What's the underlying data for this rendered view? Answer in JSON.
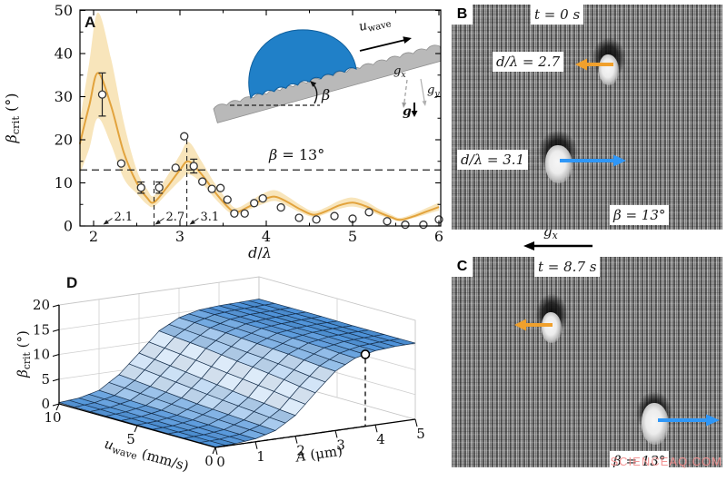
{
  "colors": {
    "curve": "#e2a33d",
    "band": "#f8e5bb",
    "accent_orange": "#f0a02c",
    "accent_blue": "#2f97f7",
    "surface_low": "#4a90d8",
    "surface_high": "#ddebf9",
    "mesh": "#16304e",
    "droplet_blue": "#2080c8",
    "droplet_edge": "#0f5e9c",
    "incline_gray": "#b9b9b9",
    "watermark_pink": "#f28c8c"
  },
  "panels": {
    "a": {
      "letter": "A",
      "ylabel_parts": [
        {
          "t": "β",
          "i": 1
        },
        {
          "t": "crit",
          "sub": 1
        },
        {
          "t": " (°)"
        }
      ],
      "xlabel_parts": [
        {
          "t": "d",
          "i": 1
        },
        {
          "t": "/"
        },
        {
          "t": "λ",
          "i": 1
        }
      ],
      "hline_label_parts": [
        {
          "t": "β",
          "i": 1
        },
        {
          "t": " = 13°"
        }
      ],
      "inset": {
        "uwave_parts": [
          {
            "t": "u",
            "i": 1
          },
          {
            "t": "wave",
            "sub": 1
          }
        ],
        "beta_parts": [
          {
            "t": "β",
            "i": 1
          }
        ],
        "gx_parts": [
          {
            "t": "g",
            "i": 1
          },
          {
            "t": "x",
            "i": 1,
            "sub": 1
          }
        ],
        "gy_parts": [
          {
            "t": "g",
            "i": 1
          },
          {
            "t": "y",
            "i": 1,
            "sub": 1
          }
        ],
        "g_parts": [
          {
            "t": "g",
            "i": 1,
            "b": 1
          }
        ]
      }
    },
    "b": {
      "letter": "B",
      "time": "t = 0 s",
      "droplet_label_1": "d/λ = 2.7",
      "droplet_label_2": "d/λ = 3.1",
      "beta": "β = 13°"
    },
    "between": {
      "gx_parts": [
        {
          "t": "g",
          "i": 1
        },
        {
          "t": "x",
          "i": 1,
          "sub": 1
        }
      ]
    },
    "c": {
      "letter": "C",
      "time": "t = 8.7 s",
      "beta": "β = 13°"
    },
    "d": {
      "letter": "D",
      "zlabel_parts": [
        {
          "t": "β",
          "i": 1
        },
        {
          "t": "crit",
          "sub": 1
        },
        {
          "t": " (°)"
        }
      ],
      "ulabel_parts": [
        {
          "t": "u",
          "i": 1
        },
        {
          "t": "wave",
          "sub": 1
        },
        {
          "t": " (mm/s)"
        }
      ],
      "alabel_parts": [
        {
          "t": "A",
          "i": 1
        },
        {
          "t": " (μm)"
        }
      ]
    },
    "watermark": "SCIENCEAQ.COM"
  },
  "chart_data": [
    {
      "type": "line",
      "panel": "A",
      "xlabel": "d/λ",
      "ylabel": "β_crit (°)",
      "xlim": [
        1.84,
        6.02
      ],
      "ylim": [
        0,
        50
      ],
      "xticks": [
        2,
        3,
        4,
        5,
        6
      ],
      "xminor": [
        2.5,
        3.5,
        4.5,
        5.5
      ],
      "yticks": [
        0,
        10,
        20,
        30,
        40,
        50
      ],
      "yminor": [
        5,
        15,
        25,
        35,
        45
      ],
      "hline": {
        "y": 13,
        "label": "β = 13°"
      },
      "vlines": [
        {
          "x": 2.7,
          "ymax": 11.2
        },
        {
          "x": 3.08,
          "ymax": 20.5
        }
      ],
      "annotations": [
        {
          "label": "2.1",
          "x": 2.1
        },
        {
          "label": "2.7",
          "x": 2.7
        },
        {
          "label": "3.1",
          "x": 3.1
        }
      ],
      "series": [
        {
          "name": "model with uncertainty band",
          "x": [
            1.84,
            1.95,
            2.05,
            2.2,
            2.35,
            2.5,
            2.62,
            2.7,
            2.85,
            3.0,
            3.1,
            3.25,
            3.4,
            3.55,
            3.65,
            3.8,
            3.95,
            4.1,
            4.25,
            4.4,
            4.55,
            4.7,
            4.85,
            5.0,
            5.15,
            5.3,
            5.45,
            5.55,
            5.7,
            5.85,
            6.0
          ],
          "y": [
            19,
            28,
            35.5,
            28,
            17,
            10,
            6.5,
            5.5,
            9,
            13,
            15,
            12,
            8,
            4.5,
            3.2,
            4.5,
            6,
            6.8,
            5.5,
            3.8,
            2.6,
            3.5,
            4.8,
            5.4,
            4.6,
            3.2,
            2.0,
            1.4,
            2.2,
            3.3,
            4.4
          ],
          "band_low": [
            12,
            18,
            25,
            19,
            11,
            7.5,
            5,
            4.5,
            7.5,
            10.5,
            12,
            10,
            6.5,
            3.5,
            2.6,
            3.8,
            5,
            5.8,
            4.6,
            3.1,
            2.1,
            2.9,
            4,
            4.5,
            3.8,
            2.6,
            1.6,
            1.1,
            1.8,
            2.7,
            3.6
          ],
          "band_high": [
            24,
            38,
            49.5,
            39,
            24,
            13,
            8.5,
            7,
            11.5,
            16.5,
            19.5,
            15,
            10,
            6,
            4.2,
            5.6,
            7.4,
            8.3,
            6.8,
            4.8,
            3.4,
            4.4,
            5.9,
            6.6,
            5.7,
            4,
            2.6,
            1.9,
            2.8,
            4.1,
            5.4
          ]
        },
        {
          "name": "experiment (open circles)",
          "x": [
            2.1,
            2.32,
            2.55,
            2.76,
            2.95,
            3.05,
            3.16,
            3.26,
            3.37,
            3.47,
            3.55,
            3.63,
            3.75,
            3.86,
            3.96,
            4.17,
            4.38,
            4.58,
            4.79,
            5.0,
            5.19,
            5.4,
            5.61,
            5.82,
            6.0
          ],
          "y": [
            30.5,
            14.5,
            8.9,
            8.9,
            13.5,
            20.8,
            13.9,
            10.3,
            8.6,
            8.8,
            6.1,
            2.9,
            2.9,
            5.3,
            6.4,
            4.3,
            1.9,
            1.5,
            2.3,
            1.7,
            3.2,
            1.1,
            0.3,
            0.3,
            1.5
          ],
          "yerr": [
            5,
            0,
            1.3,
            1.3,
            0,
            0,
            1.6,
            0,
            0,
            0,
            0,
            0,
            0,
            0,
            0,
            0,
            0,
            0,
            0,
            0,
            0,
            0,
            0,
            0,
            0
          ]
        }
      ]
    },
    {
      "type": "surface3d",
      "panel": "D",
      "xlabel": "A (μm)",
      "ylabel": "u_wave (mm/s)",
      "zlabel": "β_crit (°)",
      "A": [
        0,
        0.5,
        1,
        1.5,
        2,
        2.5,
        3,
        3.5,
        4,
        4.5,
        5
      ],
      "u": [
        0,
        1,
        2,
        3,
        4,
        5,
        6,
        7,
        8,
        9,
        10
      ],
      "Aticks": [
        0,
        1,
        2,
        3,
        4,
        5
      ],
      "uticks": [
        0,
        5,
        10
      ],
      "zticks": [
        0,
        5,
        10,
        15,
        20
      ],
      "zlim": [
        0,
        20
      ],
      "z": [
        [
          0.1,
          0.2,
          0.6,
          1.7,
          4.2,
          8.2,
          12.0,
          14.1,
          15.0,
          15.3,
          15.4
        ],
        [
          0.1,
          0.22,
          0.65,
          1.9,
          4.5,
          8.6,
          12.2,
          14.2,
          15.05,
          15.3,
          15.4
        ],
        [
          0.1,
          0.25,
          0.7,
          2.1,
          4.9,
          9.1,
          12.5,
          14.4,
          15.1,
          15.3,
          15.4
        ],
        [
          0.12,
          0.28,
          0.8,
          2.3,
          5.2,
          9.5,
          12.8,
          14.5,
          15.15,
          15.35,
          15.4
        ],
        [
          0.13,
          0.3,
          0.9,
          2.5,
          5.6,
          9.9,
          13.0,
          14.6,
          15.2,
          15.4,
          15.4
        ],
        [
          0.14,
          0.35,
          1.0,
          2.7,
          6.0,
          10.2,
          13.2,
          14.7,
          15.2,
          15.4,
          15.45
        ],
        [
          0.15,
          0.4,
          1.1,
          3.0,
          6.4,
          10.6,
          13.4,
          14.8,
          15.2,
          15.4,
          15.5
        ],
        [
          0.17,
          0.45,
          1.2,
          3.3,
          6.8,
          11.0,
          13.6,
          14.85,
          15.25,
          15.4,
          15.5
        ],
        [
          0.2,
          0.5,
          1.3,
          3.6,
          7.2,
          11.3,
          13.7,
          14.9,
          15.3,
          15.4,
          15.5
        ],
        [
          0.22,
          0.55,
          1.45,
          3.9,
          7.6,
          11.6,
          13.9,
          14.95,
          15.3,
          15.4,
          15.5
        ],
        [
          0.25,
          0.6,
          1.6,
          4.2,
          8.0,
          11.9,
          14.0,
          15.0,
          15.3,
          15.4,
          15.5
        ]
      ],
      "marker": {
        "u": 0,
        "A": 3.75
      }
    }
  ]
}
